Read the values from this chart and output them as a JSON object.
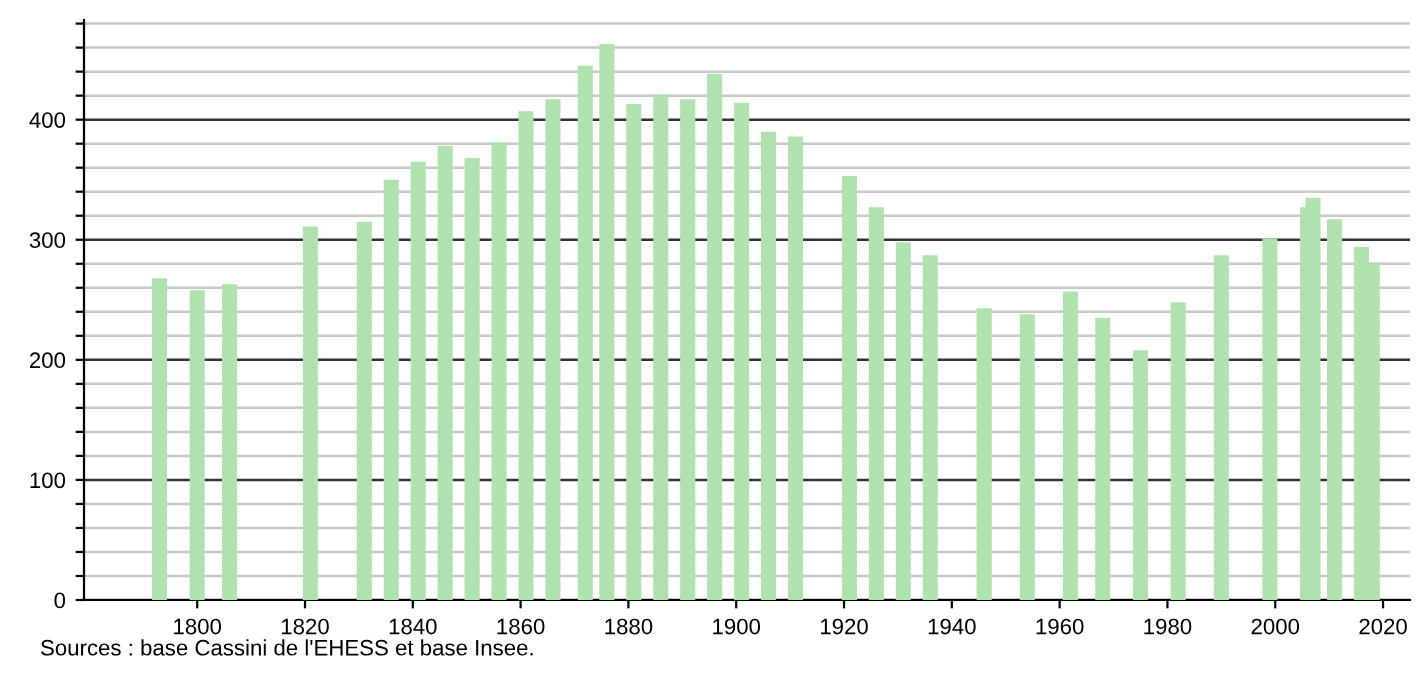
{
  "chart_data": {
    "type": "bar",
    "x": [
      1793,
      1800,
      1806,
      1821,
      1831,
      1836,
      1841,
      1846,
      1851,
      1856,
      1861,
      1866,
      1872,
      1876,
      1881,
      1886,
      1891,
      1896,
      1901,
      1906,
      1911,
      1921,
      1926,
      1931,
      1936,
      1946,
      1954,
      1962,
      1968,
      1975,
      1982,
      1990,
      1999,
      2006,
      2007,
      2011,
      2016,
      2018
    ],
    "values": [
      268,
      258,
      263,
      311,
      315,
      350,
      365,
      378,
      368,
      381,
      407,
      417,
      445,
      463,
      413,
      421,
      417,
      438,
      414,
      390,
      386,
      353,
      327,
      298,
      287,
      243,
      238,
      257,
      235,
      208,
      248,
      287,
      301,
      327,
      335,
      317,
      294,
      281
    ],
    "color": "#b0e2b0",
    "xlim": [
      1779,
      2025
    ],
    "xticks": [
      1800,
      1820,
      1840,
      1860,
      1880,
      1900,
      1920,
      1940,
      1960,
      1980,
      2000,
      2020
    ],
    "ylim": [
      0,
      483
    ],
    "yticks": [
      0,
      {
        "value": 20,
        "label": null
      },
      {
        "value": 40,
        "label": null
      },
      {
        "value": 60,
        "label": null
      },
      {
        "value": 80,
        "label": null
      },
      100,
      {
        "value": 120,
        "label": null
      },
      {
        "value": 140,
        "label": null
      },
      {
        "value": 160,
        "label": null
      },
      {
        "value": 180,
        "label": null
      },
      200,
      {
        "value": 220,
        "label": null
      },
      {
        "value": 240,
        "label": null
      },
      {
        "value": 260,
        "label": null
      },
      {
        "value": 280,
        "label": null
      },
      300,
      {
        "value": 320,
        "label": null
      },
      {
        "value": 340,
        "label": null
      },
      {
        "value": 360,
        "label": null
      },
      {
        "value": 380,
        "label": null
      },
      400,
      {
        "value": 420,
        "label": null
      },
      {
        "value": 440,
        "label": null
      },
      {
        "value": 460,
        "label": null
      },
      {
        "value": 480,
        "label": null
      }
    ],
    "grid": "y",
    "annotations": [
      "Sources : base Cassini de l'EHESS et base Insee."
    ]
  }
}
